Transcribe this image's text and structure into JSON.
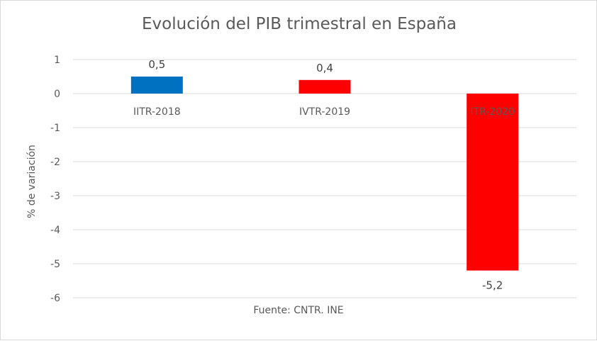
{
  "chart_data": {
    "type": "bar",
    "title": "Evolución del PIB trimestral en España",
    "ylabel": "% de variación",
    "xlabel": "",
    "source": "Fuente: CNTR. INE",
    "categories": [
      "IITR-2018",
      "IVTR-2019",
      "ITR-2020"
    ],
    "values": [
      0.5,
      0.4,
      -5.2
    ],
    "data_labels": [
      "0,5",
      "0,4",
      "-5,2"
    ],
    "bar_colors": [
      "#0070C0",
      "#FF0000",
      "#FF0000"
    ],
    "ylim": [
      -6,
      1
    ],
    "yticks": [
      1,
      0,
      -1,
      -2,
      -3,
      -4,
      -5,
      -6
    ],
    "grid": true,
    "legend": "none"
  }
}
